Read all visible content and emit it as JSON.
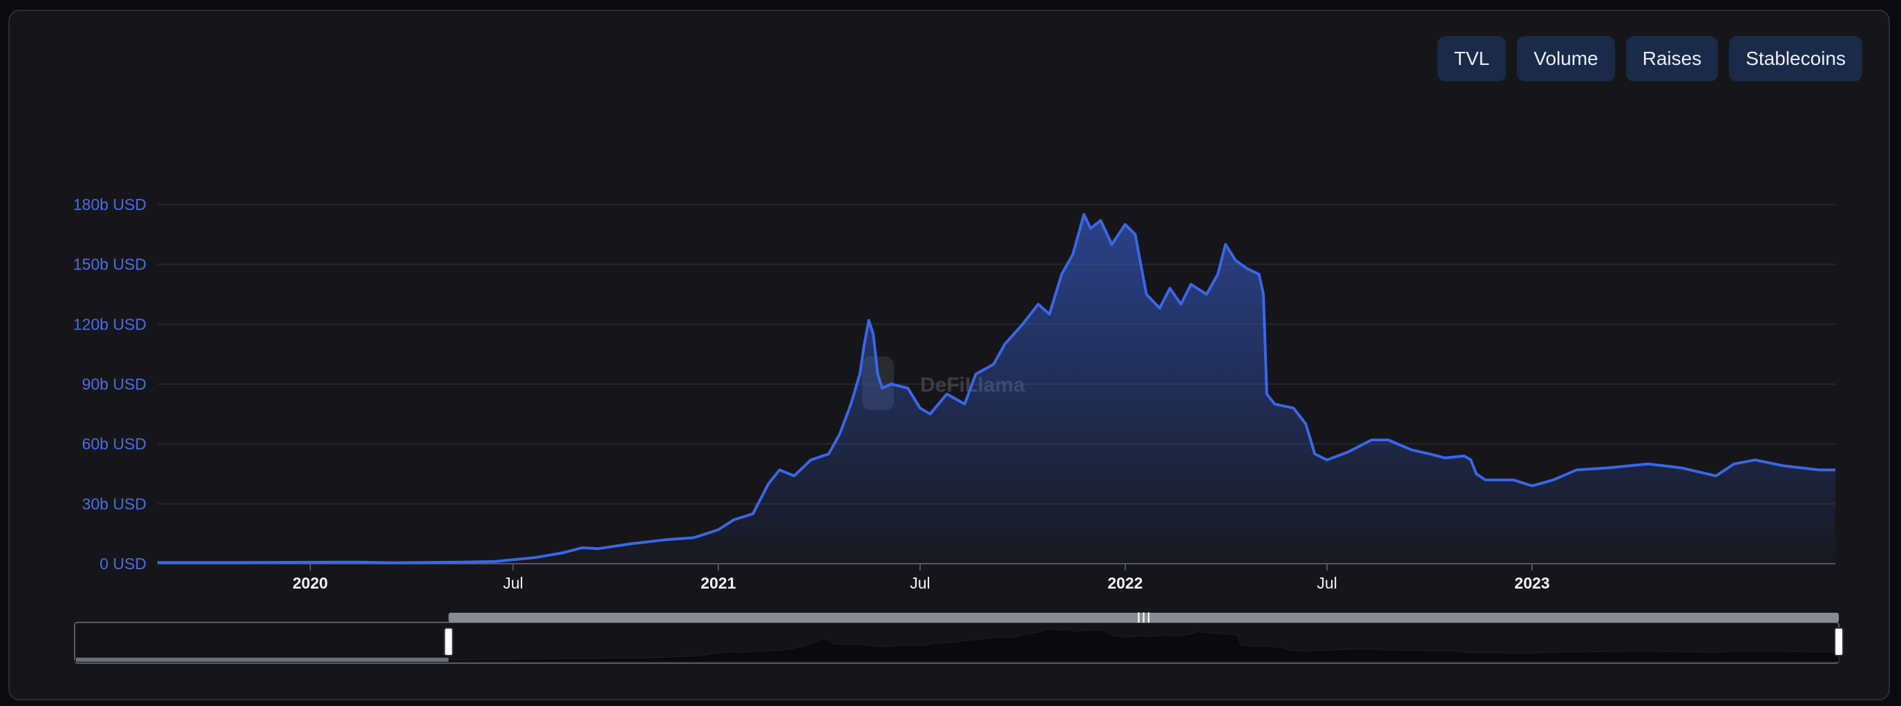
{
  "tabs": [
    "TVL",
    "Volume",
    "Raises",
    "Stablecoins"
  ],
  "watermark": "DeFiLlama",
  "colors": {
    "accent": "#3b66e6",
    "tick": "#4a6de5",
    "grid": "#26272d",
    "tab_bg": "#1b2a48"
  },
  "chart_data": {
    "type": "area",
    "ylabel": "",
    "xlabel": "",
    "unit": "b USD",
    "ylim": [
      0,
      180
    ],
    "yticks": [
      "0 USD",
      "30b USD",
      "60b USD",
      "90b USD",
      "120b USD",
      "150b USD",
      "180b USD"
    ],
    "xticks": [
      {
        "label": "2020",
        "date": "2020-01-01",
        "major": true
      },
      {
        "label": "Jul",
        "date": "2020-07-01",
        "major": false
      },
      {
        "label": "2021",
        "date": "2021-01-01",
        "major": true
      },
      {
        "label": "Jul",
        "date": "2021-07-01",
        "major": false
      },
      {
        "label": "2022",
        "date": "2022-01-01",
        "major": true
      },
      {
        "label": "Jul",
        "date": "2022-07-01",
        "major": false
      },
      {
        "label": "2023",
        "date": "2023-01-01",
        "major": true
      }
    ],
    "xrange": [
      "2019-08-17",
      "2023-09-30"
    ],
    "grid": true,
    "series": [
      {
        "values": [
          [
            "2019-08-17",
            0.6
          ],
          [
            "2019-10-15",
            0.6
          ],
          [
            "2019-12-15",
            0.7
          ],
          [
            "2020-02-15",
            0.8
          ],
          [
            "2020-03-15",
            0.5
          ],
          [
            "2020-05-15",
            0.8
          ],
          [
            "2020-06-15",
            1.1
          ],
          [
            "2020-07-01",
            2.0
          ],
          [
            "2020-07-20",
            3.0
          ],
          [
            "2020-08-15",
            5.5
          ],
          [
            "2020-09-01",
            8.0
          ],
          [
            "2020-09-15",
            7.5
          ],
          [
            "2020-10-15",
            10.0
          ],
          [
            "2020-11-15",
            12.0
          ],
          [
            "2020-12-10",
            13.0
          ],
          [
            "2021-01-01",
            17.0
          ],
          [
            "2021-01-15",
            22.0
          ],
          [
            "2021-02-01",
            25.0
          ],
          [
            "2021-02-15",
            40.0
          ],
          [
            "2021-02-25",
            47.0
          ],
          [
            "2021-03-10",
            44.0
          ],
          [
            "2021-03-25",
            52.0
          ],
          [
            "2021-04-10",
            55.0
          ],
          [
            "2021-04-20",
            65.0
          ],
          [
            "2021-04-30",
            80.0
          ],
          [
            "2021-05-08",
            95.0
          ],
          [
            "2021-05-12",
            110.0
          ],
          [
            "2021-05-16",
            122.0
          ],
          [
            "2021-05-20",
            115.0
          ],
          [
            "2021-05-24",
            95.0
          ],
          [
            "2021-05-28",
            88.0
          ],
          [
            "2021-06-05",
            90.0
          ],
          [
            "2021-06-20",
            88.0
          ],
          [
            "2021-07-01",
            78.0
          ],
          [
            "2021-07-10",
            75.0
          ],
          [
            "2021-07-25",
            85.0
          ],
          [
            "2021-08-10",
            80.0
          ],
          [
            "2021-08-20",
            95.0
          ],
          [
            "2021-09-05",
            100.0
          ],
          [
            "2021-09-15",
            110.0
          ],
          [
            "2021-10-01",
            120.0
          ],
          [
            "2021-10-15",
            130.0
          ],
          [
            "2021-10-25",
            125.0
          ],
          [
            "2021-11-05",
            145.0
          ],
          [
            "2021-11-15",
            155.0
          ],
          [
            "2021-11-25",
            175.0
          ],
          [
            "2021-12-01",
            168.0
          ],
          [
            "2021-12-10",
            172.0
          ],
          [
            "2021-12-20",
            160.0
          ],
          [
            "2022-01-01",
            170.0
          ],
          [
            "2022-01-10",
            165.0
          ],
          [
            "2022-01-20",
            135.0
          ],
          [
            "2022-02-01",
            128.0
          ],
          [
            "2022-02-10",
            138.0
          ],
          [
            "2022-02-20",
            130.0
          ],
          [
            "2022-03-01",
            140.0
          ],
          [
            "2022-03-15",
            135.0
          ],
          [
            "2022-03-25",
            145.0
          ],
          [
            "2022-04-01",
            160.0
          ],
          [
            "2022-04-10",
            152.0
          ],
          [
            "2022-04-20",
            148.0
          ],
          [
            "2022-05-01",
            145.0
          ],
          [
            "2022-05-05",
            135.0
          ],
          [
            "2022-05-08",
            85.0
          ],
          [
            "2022-05-15",
            80.0
          ],
          [
            "2022-06-01",
            78.0
          ],
          [
            "2022-06-12",
            70.0
          ],
          [
            "2022-06-20",
            55.0
          ],
          [
            "2022-07-01",
            52.0
          ],
          [
            "2022-07-20",
            56.0
          ],
          [
            "2022-08-10",
            62.0
          ],
          [
            "2022-08-25",
            62.0
          ],
          [
            "2022-09-15",
            57.0
          ],
          [
            "2022-10-01",
            55.0
          ],
          [
            "2022-10-15",
            53.0
          ],
          [
            "2022-11-01",
            54.0
          ],
          [
            "2022-11-07",
            52.0
          ],
          [
            "2022-11-12",
            45.0
          ],
          [
            "2022-11-20",
            42.0
          ],
          [
            "2022-12-15",
            42.0
          ],
          [
            "2023-01-01",
            39.0
          ],
          [
            "2023-01-20",
            42.0
          ],
          [
            "2023-02-10",
            47.0
          ],
          [
            "2023-03-10",
            48.0
          ],
          [
            "2023-04-15",
            50.0
          ],
          [
            "2023-05-15",
            48.0
          ],
          [
            "2023-06-15",
            44.0
          ],
          [
            "2023-07-01",
            50.0
          ],
          [
            "2023-07-20",
            52.0
          ],
          [
            "2023-08-15",
            49.0
          ],
          [
            "2023-09-15",
            47.0
          ],
          [
            "2023-09-30",
            47.0
          ]
        ]
      }
    ],
    "brush": {
      "start": "2020-07-01",
      "end": "2023-09-30"
    }
  }
}
